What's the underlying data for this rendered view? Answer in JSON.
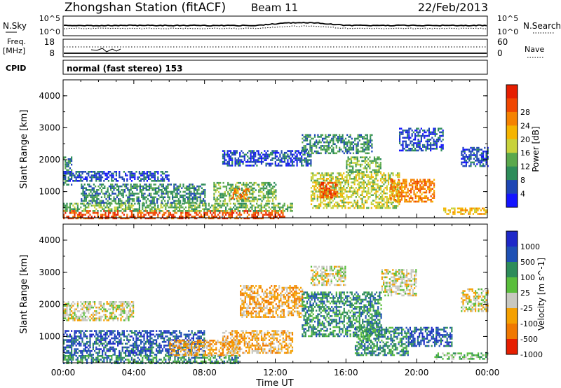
{
  "header": {
    "station": "Zhongshan Station (fitACF)",
    "beam": "Beam 11",
    "date": "22/Feb/2013"
  },
  "status_panels": {
    "nsky_label": "N.Sky",
    "nsky_ticks": [
      "10^5",
      "10^0"
    ],
    "nsearch_label": "N.Search",
    "nsearch_ticks": [
      "10^5",
      "10^0"
    ],
    "freq_label": "Freq.",
    "freq_unit": "[MHz]",
    "freq_ticks": [
      "18",
      "8"
    ],
    "nave_label": "Nave",
    "nave_ticks": [
      "60",
      "0"
    ],
    "cpid_label": "CPID",
    "cpid_value": "normal (fast stereo) 153"
  },
  "chart_data": [
    {
      "type": "heatmap",
      "title": "",
      "parameter": "Power",
      "ylabel": "Slant Range [km]",
      "xlabel": "",
      "x_ticks": [
        "00:00",
        "04:00",
        "08:00",
        "12:00",
        "16:00",
        "20:00",
        "00:00"
      ],
      "x_range_hours": [
        0,
        24
      ],
      "ylim": [
        180,
        4500
      ],
      "y_ticks": [
        1000,
        2000,
        3000,
        4000
      ],
      "colorbar": {
        "label": "Power [dB]",
        "ticks": [
          "4",
          "8",
          "12",
          "16",
          "20",
          "24",
          "28"
        ],
        "colors": [
          "#1414ff",
          "#1e46b4",
          "#2d8c5a",
          "#5aa84c",
          "#c8d23c",
          "#f5b400",
          "#f58200",
          "#f04600",
          "#e61e00"
        ]
      },
      "regions": [
        {
          "t0": 0.0,
          "t1": 12.5,
          "r0": 180,
          "r1": 420,
          "level": 7
        },
        {
          "t0": 0.0,
          "t1": 13.0,
          "r0": 420,
          "r1": 650,
          "level": 3
        },
        {
          "t0": 0.0,
          "t1": 0.5,
          "r0": 1200,
          "r1": 2100,
          "level": 2
        },
        {
          "t0": 0.0,
          "t1": 6.0,
          "r0": 1350,
          "r1": 1650,
          "level": 1
        },
        {
          "t0": 1.0,
          "t1": 8.0,
          "r0": 650,
          "r1": 1250,
          "level": 2
        },
        {
          "t0": 8.5,
          "t1": 12.0,
          "r0": 700,
          "r1": 1300,
          "level": 3
        },
        {
          "t0": 9.5,
          "t1": 10.5,
          "r0": 800,
          "r1": 1100,
          "level": 6
        },
        {
          "t0": 9.0,
          "t1": 14.0,
          "r0": 1800,
          "r1": 2300,
          "level": 1
        },
        {
          "t0": 13.5,
          "t1": 17.5,
          "r0": 2200,
          "r1": 2800,
          "level": 2
        },
        {
          "t0": 14.0,
          "t1": 19.0,
          "r0": 500,
          "r1": 1600,
          "level": 4
        },
        {
          "t0": 14.5,
          "t1": 15.5,
          "r0": 800,
          "r1": 1300,
          "level": 7
        },
        {
          "t0": 16.0,
          "t1": 18.0,
          "r0": 1600,
          "r1": 2100,
          "level": 3
        },
        {
          "t0": 18.5,
          "t1": 21.0,
          "r0": 700,
          "r1": 1400,
          "level": 6
        },
        {
          "t0": 19.0,
          "t1": 21.5,
          "r0": 2300,
          "r1": 3000,
          "level": 1
        },
        {
          "t0": 21.5,
          "t1": 24.0,
          "r0": 300,
          "r1": 500,
          "level": 5
        },
        {
          "t0": 22.5,
          "t1": 24.0,
          "r0": 1800,
          "r1": 2400,
          "level": 1
        }
      ]
    },
    {
      "type": "heatmap",
      "title": "",
      "parameter": "Velocity",
      "ylabel": "Slant Range [km]",
      "xlabel": "Time UT",
      "x_ticks": [
        "00:00",
        "04:00",
        "08:00",
        "12:00",
        "16:00",
        "20:00",
        "00:00"
      ],
      "x_range_hours": [
        0,
        24
      ],
      "ylim": [
        180,
        4500
      ],
      "y_ticks": [
        1000,
        2000,
        3000,
        4000
      ],
      "colorbar": {
        "label": "Velocity [m s^-1]",
        "ticks": [
          "1000",
          "500",
          "100",
          "25",
          "-25",
          "-100",
          "-500",
          "-1000"
        ],
        "colors": [
          "#1e28c8",
          "#1e50b4",
          "#2d8c5a",
          "#5abe3c",
          "#c8c8c0",
          "#f5a000",
          "#f07800",
          "#e61e00"
        ]
      },
      "regions": [
        {
          "t0": 0.0,
          "t1": 10.0,
          "r0": 180,
          "r1": 420,
          "level": 2
        },
        {
          "t0": 0.0,
          "t1": 8.0,
          "r0": 420,
          "r1": 1200,
          "level": 1
        },
        {
          "t0": 0.0,
          "t1": 4.0,
          "r0": 1500,
          "r1": 2100,
          "level": 4
        },
        {
          "t0": 6.0,
          "t1": 10.0,
          "r0": 400,
          "r1": 900,
          "level": 5
        },
        {
          "t0": 9.0,
          "t1": 13.0,
          "r0": 500,
          "r1": 1200,
          "level": 5
        },
        {
          "t0": 10.0,
          "t1": 13.5,
          "r0": 1600,
          "r1": 2600,
          "level": 5
        },
        {
          "t0": 13.5,
          "t1": 18.0,
          "r0": 1000,
          "r1": 2400,
          "level": 2
        },
        {
          "t0": 14.0,
          "t1": 16.0,
          "r0": 2600,
          "r1": 3200,
          "level": 4
        },
        {
          "t0": 16.5,
          "t1": 19.5,
          "r0": 400,
          "r1": 1300,
          "level": 2
        },
        {
          "t0": 18.0,
          "t1": 20.0,
          "r0": 2300,
          "r1": 3100,
          "level": 4
        },
        {
          "t0": 19.5,
          "t1": 22.0,
          "r0": 700,
          "r1": 1300,
          "level": 1
        },
        {
          "t0": 21.0,
          "t1": 24.0,
          "r0": 300,
          "r1": 500,
          "level": 3
        },
        {
          "t0": 22.5,
          "t1": 24.0,
          "r0": 1800,
          "r1": 2500,
          "level": 4
        }
      ]
    }
  ]
}
